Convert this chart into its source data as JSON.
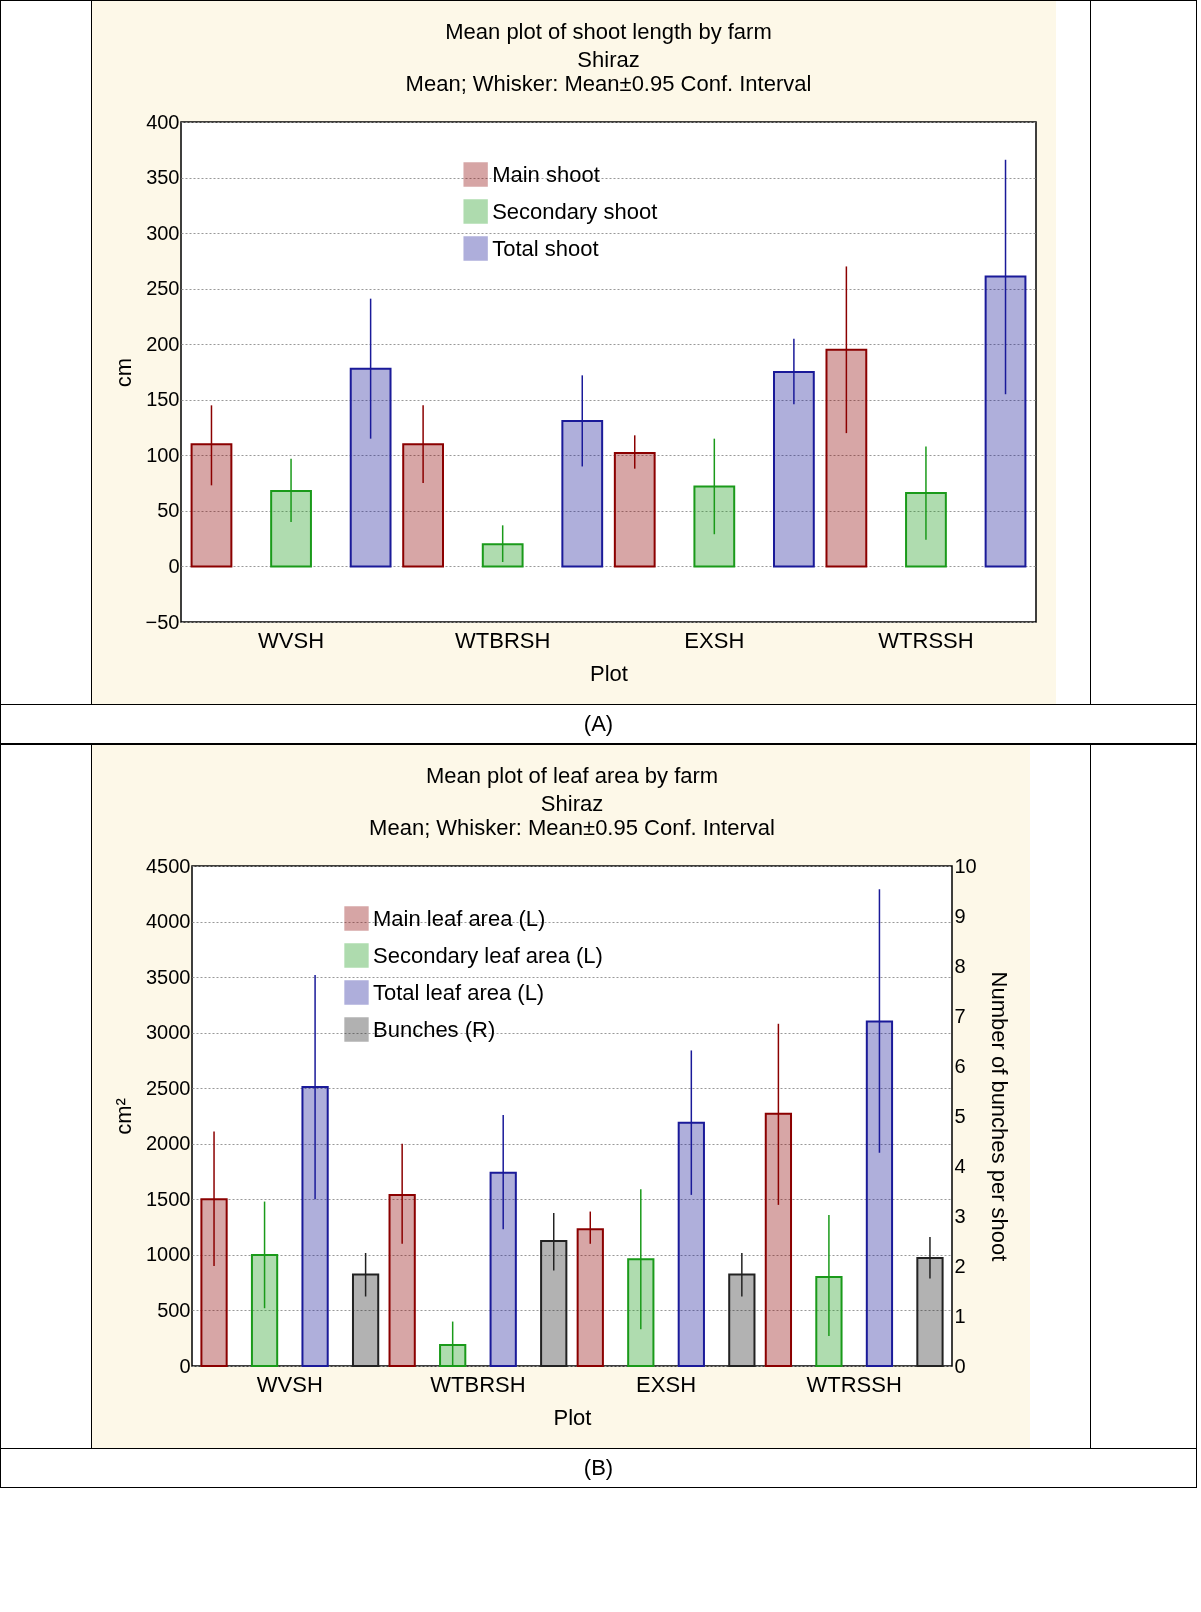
{
  "chart_data": [
    {
      "type": "bar",
      "title": "Mean plot of shoot length by farm",
      "subtitle": "Shiraz\nMean; Whisker: Mean±0.95 Conf. Interval",
      "xlabel": "Plot",
      "ylabel": "cm",
      "categories": [
        "WVSH",
        "WTBRSH",
        "EXSH",
        "WTRSSH"
      ],
      "series": [
        {
          "name": "Main shoot",
          "color": "#8b0000",
          "values": [
            110,
            110,
            102,
            195
          ],
          "errors": [
            [
              73,
              145
            ],
            [
              75,
              145
            ],
            [
              88,
              118
            ],
            [
              120,
              270
            ]
          ]
        },
        {
          "name": "Secondary shoot",
          "color": "#1a9a1a",
          "values": [
            68,
            20,
            72,
            66
          ],
          "errors": [
            [
              40,
              97
            ],
            [
              4,
              37
            ],
            [
              29,
              115
            ],
            [
              24,
              108
            ]
          ]
        },
        {
          "name": "Total shoot",
          "color": "#1a1a99",
          "values": [
            178,
            131,
            175,
            261
          ],
          "errors": [
            [
              115,
              241
            ],
            [
              90,
              172
            ],
            [
              146,
              205
            ],
            [
              155,
              366
            ]
          ]
        }
      ],
      "ylim": [
        -50,
        400
      ],
      "yticks": [
        -50,
        0,
        50,
        100,
        150,
        200,
        250,
        300,
        350,
        400
      ],
      "grid": "y",
      "legend": "top",
      "annotations": [
        "(A)"
      ]
    },
    {
      "type": "bar",
      "title": "Mean plot of leaf area by farm",
      "subtitle": "Shiraz\nMean; Whisker: Mean±0.95 Conf. Interval",
      "xlabel": "Plot",
      "ylabel": "cm²",
      "y2label": "Number of bunches per shoot",
      "categories": [
        "WVSH",
        "WTBRSH",
        "EXSH",
        "WTRSSH"
      ],
      "series": [
        {
          "name": "Main leaf area (L)",
          "color": "#8b0000",
          "values": [
            1500,
            1540,
            1230,
            2270
          ],
          "errors": [
            [
              900,
              2110
            ],
            [
              1100,
              2000
            ],
            [
              1100,
              1390
            ],
            [
              1450,
              3080
            ]
          ]
        },
        {
          "name": "Secondary leaf area (L)",
          "color": "#1a9a1a",
          "values": [
            1000,
            190,
            960,
            800
          ],
          "errors": [
            [
              520,
              1480
            ],
            [
              0,
              400
            ],
            [
              330,
              1590
            ],
            [
              270,
              1360
            ]
          ]
        },
        {
          "name": "Total leaf area (L)",
          "color": "#1a1a99",
          "values": [
            2510,
            1740,
            2190,
            3100
          ],
          "errors": [
            [
              1500,
              3520
            ],
            [
              1230,
              2260
            ],
            [
              1540,
              2840
            ],
            [
              1920,
              4290
            ]
          ]
        },
        {
          "name": "Bunches (R)",
          "color": "#222222",
          "axis": "y2",
          "values": [
            1.83,
            2.5,
            1.83,
            2.16
          ],
          "errors": [
            [
              1.39,
              2.26
            ],
            [
              1.91,
              3.06
            ],
            [
              1.39,
              2.26
            ],
            [
              1.75,
              2.58
            ]
          ]
        }
      ],
      "ylim": [
        0,
        4500
      ],
      "yticks": [
        0,
        500,
        1000,
        1500,
        2000,
        2500,
        3000,
        3500,
        4000,
        4500
      ],
      "y2lim": [
        0,
        10
      ],
      "y2ticks": [
        0,
        1,
        2,
        3,
        4,
        5,
        6,
        7,
        8,
        9,
        10
      ],
      "grid": "y",
      "legend": "top left",
      "annotations": [
        "(B)"
      ]
    }
  ]
}
